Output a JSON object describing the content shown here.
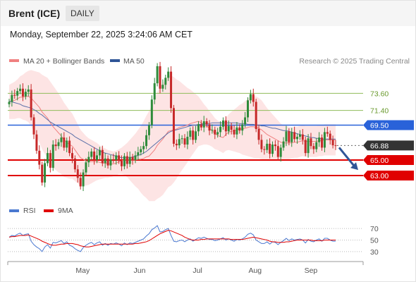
{
  "header": {
    "title": "Brent (ICE)",
    "timeframe": "DAILY",
    "timestamp": "Monday, September 22, 2025 3:24:06 AM CET"
  },
  "legend": {
    "items": [
      {
        "name": "MA 20 + Bollinger Bands",
        "color": "#f08080"
      },
      {
        "name": "MA 50",
        "color": "#2f5597"
      }
    ],
    "credit": "Research © 2025 Trading Central"
  },
  "rsi_legend": {
    "items": [
      {
        "name": "RSI",
        "color": "#4a78d0"
      },
      {
        "name": "9MA",
        "color": "#e00000"
      }
    ]
  },
  "chart_data": [
    {
      "type": "candlestick",
      "title": "Brent (ICE)",
      "x_labels": [
        "May",
        "Jun",
        "Jul",
        "Aug",
        "Sep"
      ],
      "ylim": [
        60.0,
        77.0
      ],
      "levels": [
        {
          "value": 73.6,
          "label": "73.60",
          "kind": "resistance",
          "color": "#8fbc5a"
        },
        {
          "value": 71.4,
          "label": "71.40",
          "kind": "resistance",
          "color": "#8fbc5a"
        },
        {
          "value": 69.5,
          "label": "69.50",
          "kind": "pivot",
          "color": "#2962d9"
        },
        {
          "value": 66.88,
          "label": "66.88",
          "kind": "last",
          "color": "#333333"
        },
        {
          "value": 65.0,
          "label": "65.00",
          "kind": "support",
          "color": "#e00000"
        },
        {
          "value": 63.0,
          "label": "63.00",
          "kind": "support",
          "color": "#e00000"
        }
      ],
      "closes": [
        72.5,
        73.4,
        73.3,
        73.9,
        74.2,
        73.2,
        73.8,
        74.1,
        70.5,
        68.3,
        66.2,
        64.4,
        62.1,
        64.6,
        65.9,
        64.0,
        67.0,
        66.8,
        67.3,
        67.9,
        66.6,
        67.5,
        65.9,
        65.2,
        63.8,
        62.7,
        61.6,
        63.4,
        64.7,
        65.4,
        66.1,
        65.0,
        65.6,
        66.3,
        64.6,
        65.2,
        64.3,
        65.1,
        65.0,
        65.6,
        64.9,
        64.2,
        65.5,
        64.5,
        65.4,
        65.0,
        65.6,
        66.0,
        66.4,
        66.8,
        68.2,
        69.5,
        72.8,
        74.9,
        77.1,
        74.2,
        74.7,
        75.6,
        76.4,
        71.7,
        67.1,
        66.9,
        67.7,
        67.8,
        67.0,
        68.0,
        68.8,
        67.6,
        68.7,
        69.6,
        69.2,
        70.0,
        69.6,
        68.8,
        68.9,
        68.3,
        68.6,
        69.3,
        70.1,
        68.7,
        69.4,
        68.9,
        68.3,
        69.2,
        68.8,
        69.6,
        70.5,
        72.7,
        73.5,
        72.5,
        69.0,
        67.6,
        66.4,
        66.3,
        67.1,
        65.8,
        67.0,
        66.8,
        65.4,
        66.6,
        67.4,
        68.7,
        67.3,
        68.6,
        67.7,
        68.0,
        68.3,
        67.6,
        65.9,
        67.8,
        66.8,
        66.4,
        67.3,
        67.9,
        66.6,
        68.6,
        68.4,
        67.6,
        66.9,
        66.88
      ],
      "ma20": [
        72.5,
        72.6,
        72.7,
        72.9,
        73.1,
        73.1,
        73.2,
        73.2,
        73.0,
        72.6,
        72.2,
        71.8,
        71.2,
        70.8,
        70.4,
        69.8,
        69.3,
        68.9,
        68.5,
        68.1,
        67.6,
        67.3,
        67.0,
        66.8,
        66.3,
        65.8,
        65.3,
        65.1,
        64.9,
        64.8,
        64.8,
        64.8,
        64.8,
        64.7,
        64.6,
        64.6,
        64.5,
        64.5,
        64.5,
        64.6,
        64.8,
        64.9,
        65.0,
        65.0,
        65.0,
        65.0,
        65.0,
        65.1,
        65.1,
        65.2,
        65.4,
        65.5,
        65.9,
        66.3,
        66.9,
        67.3,
        67.7,
        68.2,
        68.7,
        68.8,
        68.9,
        69.0,
        69.2,
        69.3,
        69.4,
        69.5,
        69.7,
        69.8,
        69.9,
        70.0,
        69.8,
        69.6,
        69.4,
        69.1,
        68.8,
        68.4,
        68.2,
        68.0,
        67.9,
        68.3,
        68.6,
        68.7,
        68.8,
        68.9,
        69.0,
        69.0,
        69.1,
        69.2,
        69.3,
        69.3,
        69.2,
        69.1,
        68.9,
        68.6,
        68.3,
        68.1,
        67.9,
        67.7,
        67.5,
        67.3,
        67.2,
        67.2,
        67.2,
        67.2,
        67.3,
        67.3,
        67.4,
        67.5,
        67.4,
        67.4,
        67.4,
        67.4,
        67.4,
        67.5,
        67.5,
        67.6,
        67.6,
        67.6,
        67.6,
        67.6
      ],
      "ma50": [
        72.6,
        72.5,
        72.4,
        72.3,
        72.2,
        72.0,
        71.9,
        71.8,
        71.7,
        71.5,
        71.3,
        71.0,
        70.8,
        70.5,
        70.2,
        69.9,
        69.7,
        69.5,
        69.3,
        69.1,
        68.9,
        68.7,
        68.5,
        68.3,
        68.0,
        67.8,
        67.6,
        67.4,
        67.2,
        67.0,
        66.8,
        66.6,
        66.4,
        66.2,
        66.0,
        65.9,
        65.8,
        65.7,
        65.6,
        65.5,
        65.4,
        65.3,
        65.3,
        65.3,
        65.3,
        65.4,
        65.5,
        65.6,
        65.7,
        65.9,
        66.1,
        66.4,
        66.7,
        67.0,
        67.3,
        67.6,
        67.9,
        68.2,
        68.5,
        68.7,
        68.8,
        68.9,
        69.0,
        69.1,
        69.2,
        69.3,
        69.4,
        69.5,
        69.5,
        69.6,
        69.6,
        69.7,
        69.7,
        69.7,
        69.8,
        69.8,
        69.8,
        69.8,
        69.8,
        69.8,
        69.8,
        69.8,
        69.8,
        69.8,
        69.7,
        69.7,
        69.7,
        69.6,
        69.6,
        69.6,
        69.5,
        69.5,
        69.4,
        69.4,
        69.3,
        69.2,
        69.1,
        69.1,
        69.0,
        68.9,
        68.8,
        68.8,
        68.7,
        68.6,
        68.5,
        68.4,
        68.3,
        68.2,
        68.1,
        68.0,
        67.9,
        67.9,
        67.8,
        67.8,
        67.7,
        67.7,
        67.7,
        67.7,
        67.7,
        67.7
      ],
      "bollinger_width": [
        2.2,
        2.3,
        2.4,
        2.5,
        2.7,
        2.9,
        3.1,
        3.3,
        3.6,
        3.9,
        4.2,
        4.5,
        4.8,
        5.0,
        5.2,
        5.3,
        5.3,
        5.2,
        5.1,
        4.9,
        4.8,
        4.6,
        4.4,
        4.2,
        4.0,
        3.8,
        3.6,
        3.4,
        3.2,
        3.0,
        2.8,
        2.6,
        2.4,
        2.2,
        2.0,
        1.9,
        1.8,
        1.7,
        1.6,
        1.6,
        1.6,
        1.7,
        1.9,
        2.2,
        2.6,
        3.0,
        3.4,
        3.8,
        4.3,
        4.8,
        5.3,
        5.8,
        6.2,
        6.6,
        6.9,
        7.1,
        7.2,
        7.2,
        7.2,
        7.1,
        6.8,
        6.4,
        6.0,
        5.6,
        5.2,
        4.8,
        4.4,
        4.0,
        3.6,
        3.2,
        2.9,
        2.6,
        2.4,
        2.2,
        2.1,
        2.0,
        1.9,
        1.9,
        2.0,
        2.1,
        2.3,
        2.5,
        2.7,
        2.9,
        3.1,
        3.3,
        3.5,
        3.7,
        3.9,
        4.0,
        4.0,
        3.9,
        3.8,
        3.6,
        3.4,
        3.2,
        3.0,
        2.8,
        2.6,
        2.4,
        2.3,
        2.2,
        2.1,
        2.0,
        2.0,
        2.0,
        2.0,
        2.0,
        2.0,
        2.0,
        2.0,
        2.0,
        2.0,
        2.0,
        2.0,
        2.0,
        2.0,
        2.0,
        2.0,
        2.0
      ],
      "projection": {
        "from": 66.88,
        "to": 63.9,
        "direction": "down"
      }
    },
    {
      "type": "line",
      "title": "RSI",
      "yticks": [
        70,
        50,
        30
      ],
      "ylim": [
        20,
        80
      ],
      "series": [
        {
          "name": "RSI",
          "color": "#4a78d0",
          "values": [
            55,
            58,
            57,
            60,
            62,
            58,
            60,
            61,
            48,
            42,
            38,
            35,
            30,
            38,
            42,
            36,
            46,
            45,
            47,
            49,
            44,
            47,
            41,
            39,
            35,
            32,
            30,
            37,
            41,
            44,
            46,
            42,
            45,
            47,
            41,
            44,
            41,
            44,
            43,
            45,
            43,
            40,
            45,
            42,
            45,
            44,
            46,
            48,
            50,
            52,
            57,
            61,
            68,
            71,
            75,
            64,
            65,
            68,
            70,
            58,
            48,
            47,
            49,
            50,
            47,
            50,
            52,
            48,
            51,
            54,
            53,
            55,
            53,
            51,
            51,
            49,
            50,
            52,
            54,
            50,
            52,
            50,
            48,
            51,
            50,
            52,
            55,
            60,
            62,
            59,
            50,
            47,
            44,
            44,
            47,
            43,
            47,
            46,
            42,
            46,
            49,
            53,
            49,
            52,
            50,
            51,
            52,
            50,
            45,
            51,
            48,
            47,
            50,
            52,
            48,
            53,
            53,
            50,
            48,
            48
          ]
        },
        {
          "name": "9MA",
          "color": "#e00000",
          "values": [
            55,
            56,
            56,
            57,
            58,
            58,
            58,
            59,
            57,
            55,
            53,
            51,
            48,
            46,
            44,
            42,
            41,
            41,
            42,
            43,
            43,
            44,
            44,
            44,
            43,
            42,
            40,
            39,
            38,
            38,
            39,
            40,
            41,
            42,
            43,
            43,
            43,
            43,
            43,
            43,
            43,
            43,
            43,
            43,
            43,
            43,
            44,
            44,
            45,
            46,
            47,
            49,
            52,
            55,
            58,
            61,
            63,
            65,
            67,
            66,
            64,
            62,
            60,
            58,
            55,
            53,
            51,
            50,
            50,
            50,
            51,
            51,
            52,
            52,
            52,
            52,
            52,
            52,
            52,
            52,
            52,
            51,
            51,
            51,
            51,
            51,
            52,
            53,
            54,
            55,
            54,
            53,
            52,
            51,
            50,
            48,
            47,
            47,
            46,
            46,
            46,
            47,
            47,
            48,
            49,
            50,
            50,
            50,
            50,
            50,
            50,
            49,
            49,
            49,
            49,
            50,
            50,
            50,
            50,
            50
          ]
        }
      ]
    }
  ]
}
